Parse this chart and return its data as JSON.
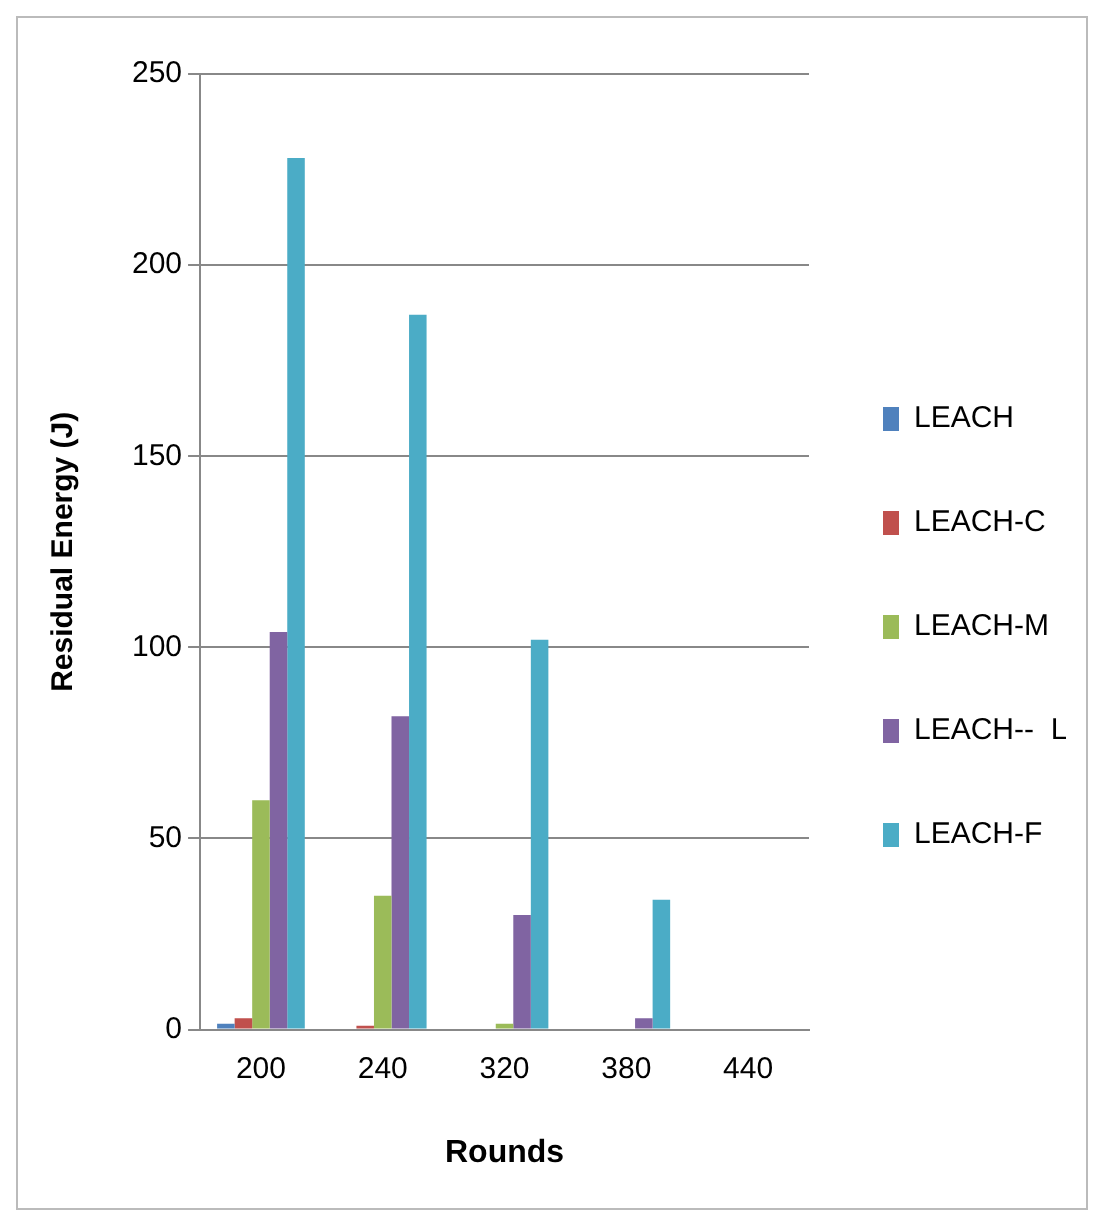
{
  "chart_data": {
    "type": "bar",
    "xlabel": "Rounds",
    "ylabel": "Residual Energy (J)",
    "categories": [
      "200",
      "240",
      "320",
      "380",
      "440"
    ],
    "series": [
      {
        "name": "LEACH",
        "color": "#4f81bd",
        "values": [
          1.5,
          0,
          0,
          0,
          0
        ]
      },
      {
        "name": "LEACH-C",
        "color": "#c0504d",
        "values": [
          3,
          1,
          0,
          0,
          0
        ]
      },
      {
        "name": "LEACH-M",
        "color": "#9bbb59",
        "values": [
          60,
          35,
          1.5,
          0,
          0
        ]
      },
      {
        "name": "LEACH--  L",
        "color": "#8064a2",
        "values": [
          104,
          82,
          30,
          3,
          0
        ]
      },
      {
        "name": "LEACH-F",
        "color": "#4bacc6",
        "values": [
          228,
          187,
          102,
          34,
          0
        ]
      }
    ],
    "ylim": [
      0,
      250
    ],
    "yticks": [
      0,
      50,
      100,
      150,
      200,
      250
    ],
    "grid": "y",
    "legend": "right"
  }
}
